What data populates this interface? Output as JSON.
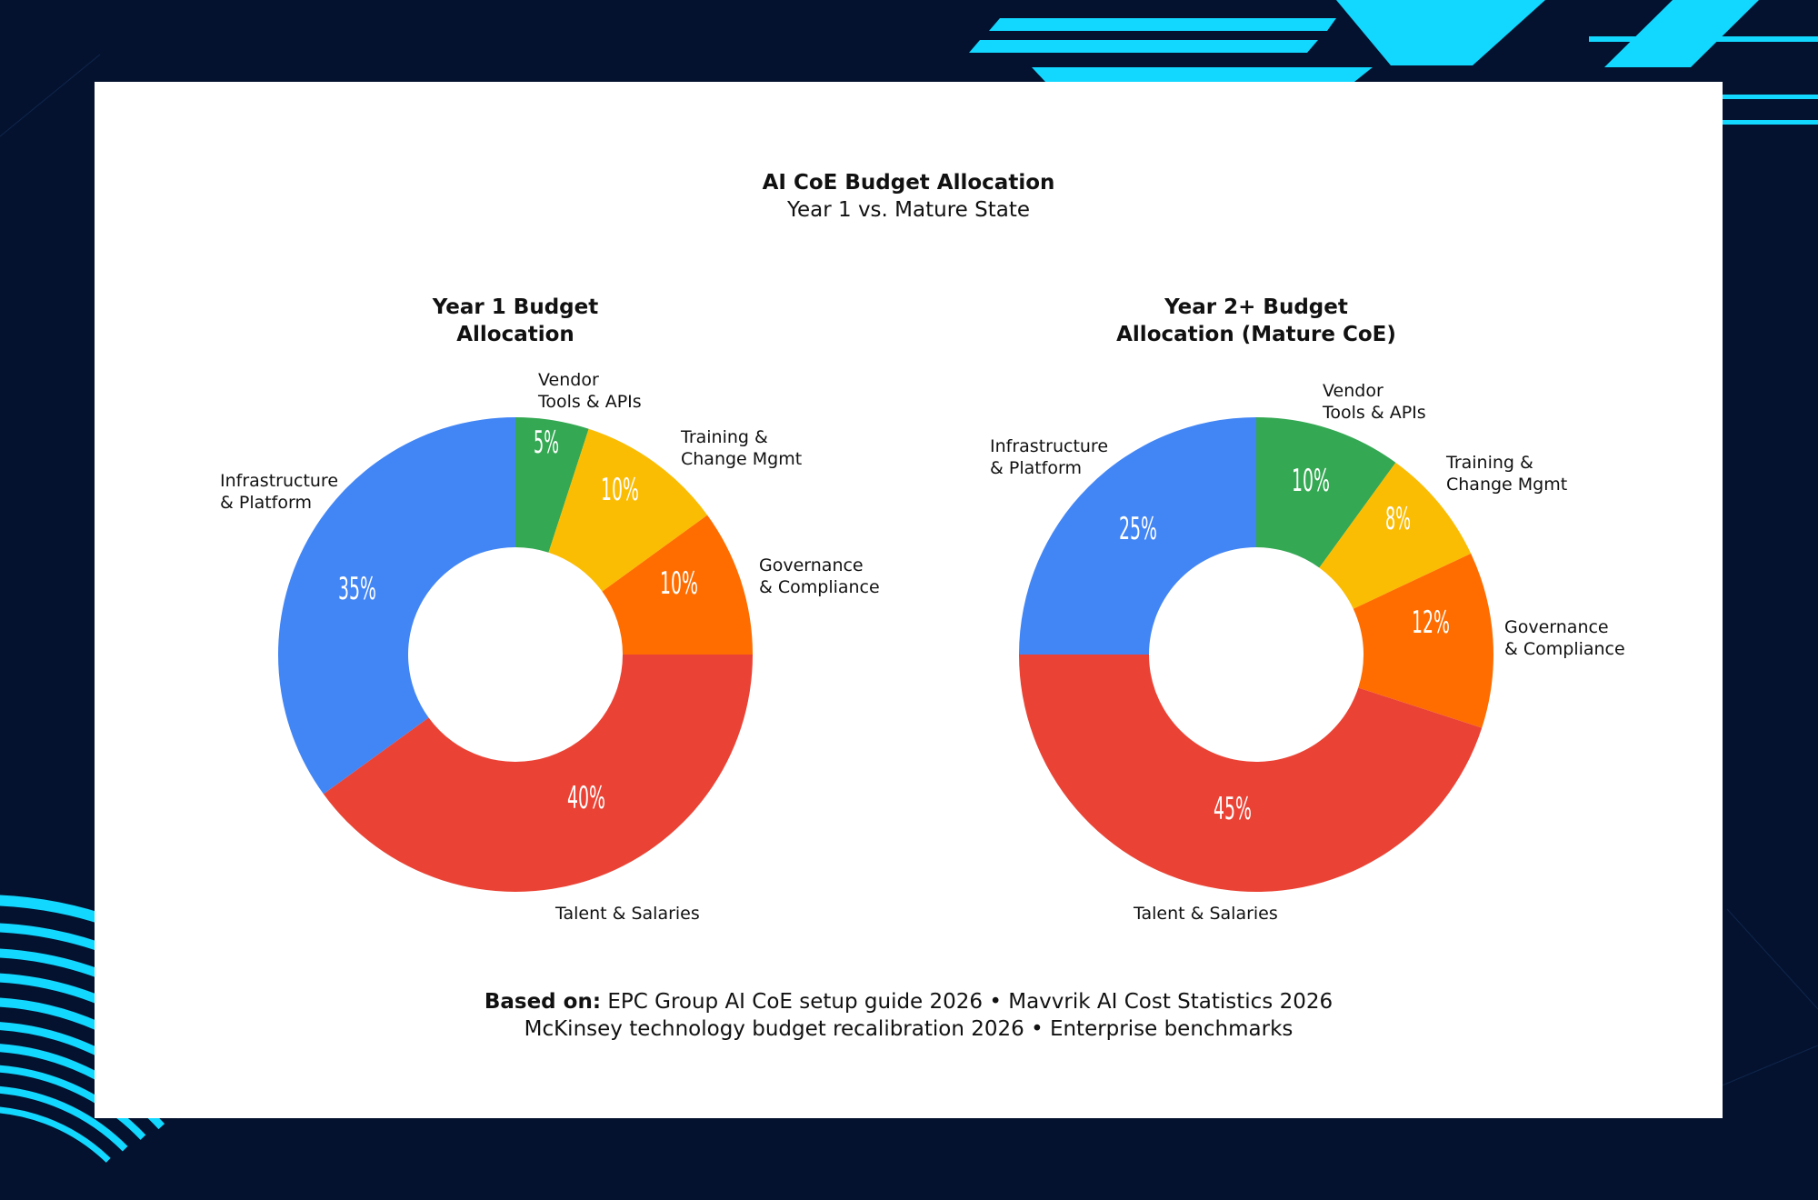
{
  "page": {
    "title": "AI CoE Budget Allocation",
    "subtitle": "Year 1 vs. Mature State",
    "footnote_bold": "Based on:",
    "footnote_line1": " EPC Group AI CoE setup guide 2026 • Mavvrik AI Cost Statistics 2026",
    "footnote_line2": "McKinsey technology budget recalibration 2026 • Enterprise benchmarks"
  },
  "colors": {
    "background": "#04122f",
    "accent": "#12d7ff",
    "card": "#ffffff"
  },
  "chart_data": [
    {
      "type": "pie",
      "donut": true,
      "title_lines": [
        "Year 1 Budget",
        "Allocation"
      ],
      "slices": [
        {
          "label": [
            "Vendor",
            "Tools & APIs"
          ],
          "value": 5,
          "pct": "5%",
          "color": "#34a853"
        },
        {
          "label": [
            "Training &",
            "Change Mgmt"
          ],
          "value": 10,
          "pct": "10%",
          "color": "#fbbc04"
        },
        {
          "label": [
            "Governance",
            "& Compliance"
          ],
          "value": 10,
          "pct": "10%",
          "color": "#ff6d01"
        },
        {
          "label": [
            "Talent & Salaries"
          ],
          "value": 40,
          "pct": "40%",
          "color": "#ea4335"
        },
        {
          "label": [
            "Infrastructure",
            "& Platform"
          ],
          "value": 35,
          "pct": "35%",
          "color": "#4285f4"
        }
      ]
    },
    {
      "type": "pie",
      "donut": true,
      "title_lines": [
        "Year 2+ Budget",
        "Allocation (Mature CoE)"
      ],
      "slices": [
        {
          "label": [
            "Vendor",
            "Tools & APIs"
          ],
          "value": 10,
          "pct": "10%",
          "color": "#34a853"
        },
        {
          "label": [
            "Training &",
            "Change Mgmt"
          ],
          "value": 8,
          "pct": "8%",
          "color": "#fbbc04"
        },
        {
          "label": [
            "Governance",
            "& Compliance"
          ],
          "value": 12,
          "pct": "12%",
          "color": "#ff6d01"
        },
        {
          "label": [
            "Talent & Salaries"
          ],
          "value": 45,
          "pct": "45%",
          "color": "#ea4335"
        },
        {
          "label": [
            "Infrastructure",
            "& Platform"
          ],
          "value": 25,
          "pct": "25%",
          "color": "#4285f4"
        }
      ]
    }
  ]
}
